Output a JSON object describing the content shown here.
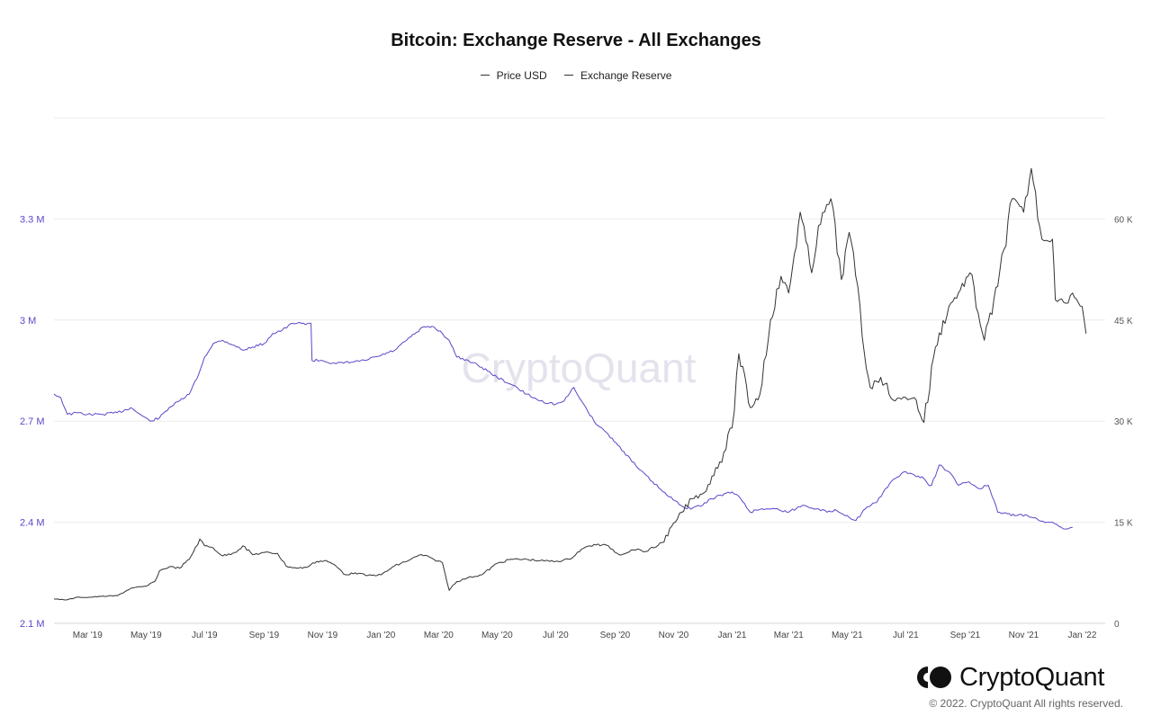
{
  "chart_data": {
    "type": "line",
    "title": "Bitcoin: Exchange Reserve - All Exchanges",
    "legend": [
      {
        "name": "Price USD",
        "color": "#333333"
      },
      {
        "name": "Exchange Reserve",
        "color": "#5b47c9"
      }
    ],
    "watermark": "CryptoQuant",
    "x_ticks": [
      "Mar '19",
      "May '19",
      "Jul '19",
      "Sep '19",
      "Nov '19",
      "Jan '20",
      "Mar '20",
      "May '20",
      "Jul '20",
      "Sep '20",
      "Nov '20",
      "Jan '21",
      "Mar '21",
      "May '21",
      "Jul '21",
      "Sep '21",
      "Nov '21",
      "Jan '22"
    ],
    "left_axis": {
      "label": "Exchange Reserve",
      "ticks": [
        "2.1 M",
        "2.4 M",
        "2.7 M",
        "3 M",
        "3.3 M"
      ],
      "tick_values": [
        2100000,
        2400000,
        2700000,
        3000000,
        3300000
      ],
      "range": [
        2100000,
        3600000
      ],
      "color": "#5b47c9"
    },
    "right_axis": {
      "label": "Price USD",
      "ticks": [
        "0",
        "15 K",
        "30 K",
        "45 K",
        "60 K"
      ],
      "tick_values": [
        0,
        15000,
        30000,
        45000,
        60000
      ],
      "range": [
        0,
        75000
      ]
    },
    "x_range": [
      "2019-01-25",
      "2022-01-25"
    ],
    "series": [
      {
        "name": "Exchange Reserve",
        "axis": "left",
        "color": "#5b47c9",
        "x": [
          "2019-01-25",
          "2019-02-01",
          "2019-02-08",
          "2019-02-20",
          "2019-03-01",
          "2019-03-15",
          "2019-04-01",
          "2019-04-15",
          "2019-04-25",
          "2019-05-05",
          "2019-05-15",
          "2019-05-25",
          "2019-06-05",
          "2019-06-15",
          "2019-06-25",
          "2019-07-01",
          "2019-07-10",
          "2019-07-20",
          "2019-08-01",
          "2019-08-10",
          "2019-08-20",
          "2019-09-01",
          "2019-09-10",
          "2019-09-20",
          "2019-10-01",
          "2019-10-10",
          "2019-10-20",
          "2019-10-21",
          "2019-11-01",
          "2019-11-15",
          "2019-12-01",
          "2019-12-15",
          "2020-01-01",
          "2020-01-15",
          "2020-02-01",
          "2020-02-15",
          "2020-02-25",
          "2020-03-05",
          "2020-03-12",
          "2020-03-20",
          "2020-04-01",
          "2020-04-15",
          "2020-05-01",
          "2020-05-15",
          "2020-06-01",
          "2020-06-15",
          "2020-07-01",
          "2020-07-10",
          "2020-07-20",
          "2020-07-28",
          "2020-08-10",
          "2020-08-25",
          "2020-09-10",
          "2020-09-25",
          "2020-10-10",
          "2020-10-25",
          "2020-11-05",
          "2020-11-15",
          "2020-12-01",
          "2020-12-10",
          "2020-12-20",
          "2021-01-01",
          "2021-01-10",
          "2021-01-20",
          "2021-02-01",
          "2021-02-15",
          "2021-03-01",
          "2021-03-15",
          "2021-04-01",
          "2021-04-10",
          "2021-04-20",
          "2021-05-01",
          "2021-05-10",
          "2021-05-20",
          "2021-06-01",
          "2021-06-10",
          "2021-06-20",
          "2021-07-01",
          "2021-07-10",
          "2021-07-20",
          "2021-07-25",
          "2021-07-28",
          "2021-08-05",
          "2021-08-15",
          "2021-08-25",
          "2021-09-05",
          "2021-09-15",
          "2021-09-25",
          "2021-10-05",
          "2021-10-15",
          "2021-10-25",
          "2021-11-05",
          "2021-11-15",
          "2021-11-25",
          "2021-12-05",
          "2021-12-10",
          "2021-12-15",
          "2021-12-22"
        ],
        "y": [
          2780000,
          2770000,
          2720000,
          2725000,
          2720000,
          2720000,
          2725000,
          2740000,
          2720000,
          2700000,
          2710000,
          2740000,
          2760000,
          2780000,
          2840000,
          2890000,
          2930000,
          2940000,
          2925000,
          2910000,
          2920000,
          2930000,
          2960000,
          2970000,
          2990000,
          2990000,
          2990000,
          2880000,
          2880000,
          2870000,
          2875000,
          2880000,
          2895000,
          2910000,
          2950000,
          2980000,
          2980000,
          2960000,
          2940000,
          2890000,
          2880000,
          2860000,
          2830000,
          2810000,
          2780000,
          2760000,
          2750000,
          2760000,
          2800000,
          2760000,
          2700000,
          2660000,
          2610000,
          2560000,
          2520000,
          2480000,
          2460000,
          2440000,
          2450000,
          2470000,
          2480000,
          2490000,
          2470000,
          2430000,
          2440000,
          2440000,
          2430000,
          2450000,
          2440000,
          2430000,
          2435000,
          2420000,
          2405000,
          2440000,
          2460000,
          2500000,
          2530000,
          2550000,
          2540000,
          2530000,
          2510000,
          2510000,
          2570000,
          2550000,
          2510000,
          2520000,
          2500000,
          2510000,
          2430000,
          2425000,
          2420000,
          2420000,
          2410000,
          2400000,
          2395000,
          2385000,
          2380000,
          2385000
        ]
      },
      {
        "name": "Price USD",
        "axis": "right",
        "color": "#333333",
        "x": [
          "2019-01-25",
          "2019-02-08",
          "2019-02-20",
          "2019-03-01",
          "2019-03-15",
          "2019-04-01",
          "2019-04-15",
          "2019-05-01",
          "2019-05-10",
          "2019-05-15",
          "2019-05-25",
          "2019-06-05",
          "2019-06-15",
          "2019-06-26",
          "2019-07-01",
          "2019-07-10",
          "2019-07-20",
          "2019-08-01",
          "2019-08-10",
          "2019-08-20",
          "2019-09-01",
          "2019-09-15",
          "2019-09-24",
          "2019-10-05",
          "2019-10-15",
          "2019-10-26",
          "2019-11-05",
          "2019-11-15",
          "2019-11-25",
          "2019-12-05",
          "2019-12-18",
          "2020-01-01",
          "2020-01-15",
          "2020-02-01",
          "2020-02-12",
          "2020-02-25",
          "2020-03-05",
          "2020-03-12",
          "2020-03-20",
          "2020-04-01",
          "2020-04-15",
          "2020-05-01",
          "2020-05-15",
          "2020-06-01",
          "2020-06-15",
          "2020-07-01",
          "2020-07-15",
          "2020-07-28",
          "2020-08-10",
          "2020-08-25",
          "2020-09-05",
          "2020-09-20",
          "2020-10-05",
          "2020-10-20",
          "2020-11-05",
          "2020-11-20",
          "2020-12-01",
          "2020-12-17",
          "2021-01-01",
          "2021-01-08",
          "2021-01-20",
          "2021-01-30",
          "2021-02-10",
          "2021-02-21",
          "2021-03-01",
          "2021-03-13",
          "2021-03-25",
          "2021-04-01",
          "2021-04-14",
          "2021-04-25",
          "2021-05-03",
          "2021-05-12",
          "2021-05-19",
          "2021-05-25",
          "2021-06-05",
          "2021-06-20",
          "2021-07-01",
          "2021-07-10",
          "2021-07-20",
          "2021-08-01",
          "2021-08-15",
          "2021-08-25",
          "2021-09-06",
          "2021-09-21",
          "2021-10-05",
          "2021-10-20",
          "2021-11-01",
          "2021-11-09",
          "2021-11-20",
          "2021-12-01",
          "2021-12-04",
          "2021-12-15",
          "2021-12-22",
          "2022-01-01",
          "2022-01-05"
        ],
        "y": [
          3600,
          3500,
          3900,
          3850,
          4000,
          4100,
          5200,
          5500,
          6200,
          7800,
          8400,
          8200,
          9500,
          12500,
          11500,
          11200,
          10000,
          10500,
          11500,
          10200,
          10500,
          10400,
          8500,
          8200,
          8300,
          9200,
          9300,
          8500,
          7200,
          7500,
          7100,
          7200,
          8500,
          9500,
          10200,
          9500,
          9000,
          4900,
          6200,
          6800,
          7200,
          8900,
          9500,
          9500,
          9300,
          9200,
          9500,
          11000,
          11700,
          11500,
          10200,
          10900,
          10700,
          12000,
          15500,
          18500,
          19200,
          23000,
          29000,
          40000,
          32000,
          34000,
          45000,
          51500,
          49000,
          61000,
          52000,
          59000,
          63000,
          51000,
          58000,
          50000,
          40000,
          35000,
          36500,
          33000,
          33500,
          33500,
          29800,
          41000,
          47000,
          49000,
          52000,
          42000,
          50000,
          63000,
          61000,
          67500,
          57000,
          57000,
          48000,
          47500,
          49000,
          47000,
          43000
        ]
      }
    ]
  }
}
